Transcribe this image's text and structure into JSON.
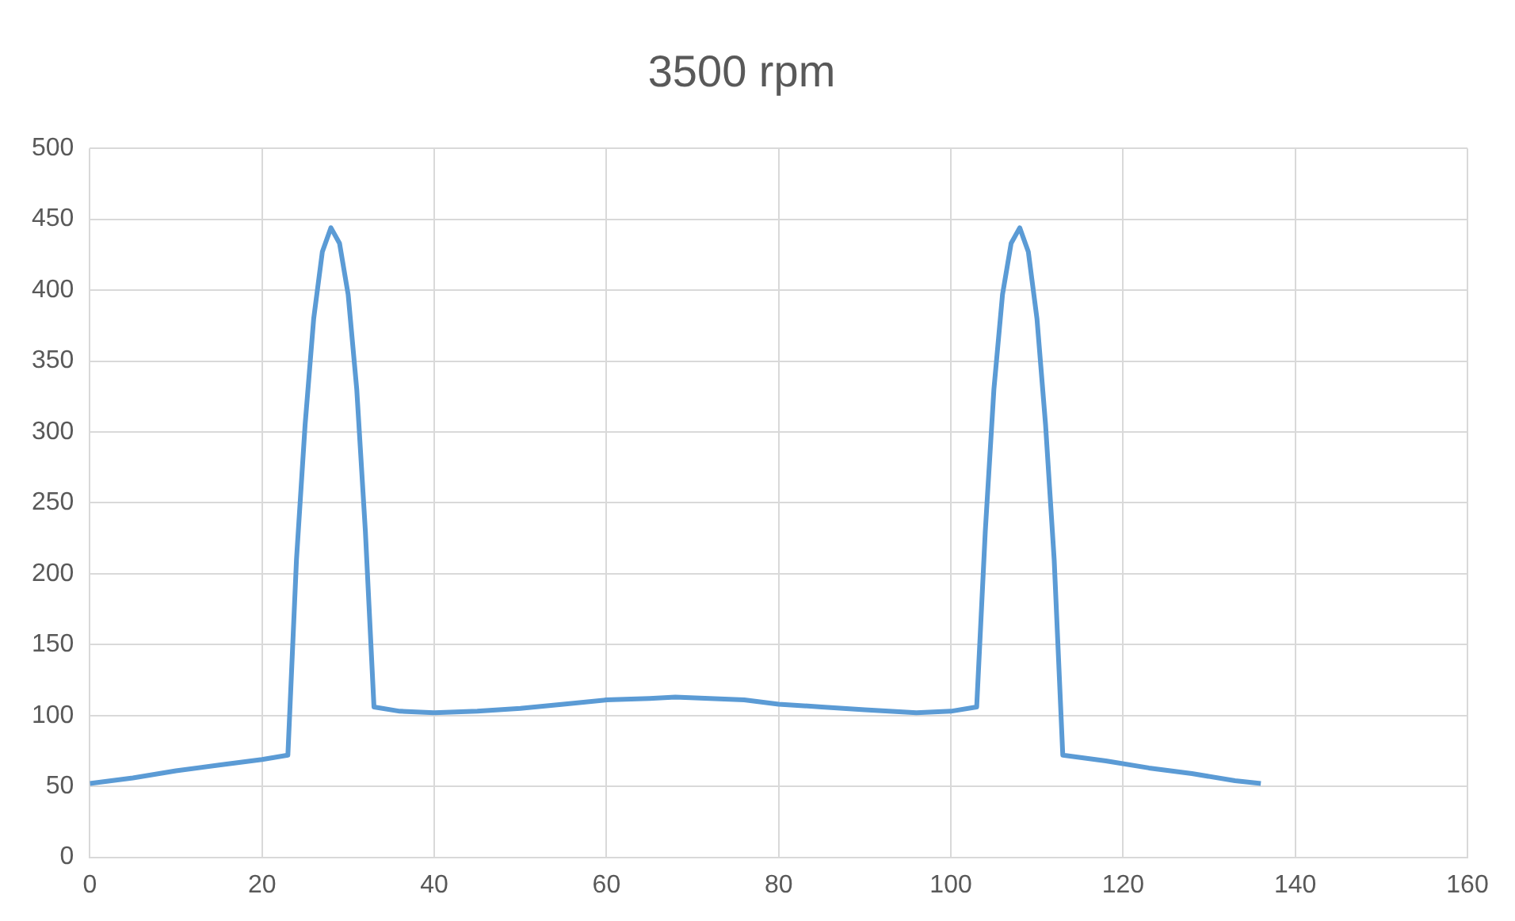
{
  "chart_data": {
    "type": "line",
    "title": "3500 rpm",
    "x": [
      0,
      5,
      10,
      15,
      20,
      23,
      24,
      25,
      26,
      27,
      28,
      29,
      30,
      31,
      32,
      33,
      36,
      40,
      45,
      50,
      55,
      60,
      65,
      68,
      72,
      76,
      80,
      85,
      90,
      96,
      100,
      103,
      104,
      105,
      106,
      107,
      108,
      109,
      110,
      111,
      112,
      113,
      118,
      123,
      128,
      133,
      136
    ],
    "series": [
      {
        "color": "#5b9bd5",
        "values": [
          52,
          56,
          61,
          65,
          69,
          72,
          210,
          305,
          380,
          427,
          444,
          433,
          397,
          330,
          230,
          106,
          103,
          102,
          103,
          105,
          108,
          111,
          112,
          113,
          112,
          111,
          108,
          106,
          104,
          102,
          103,
          106,
          230,
          330,
          397,
          433,
          444,
          427,
          380,
          305,
          210,
          72,
          68,
          63,
          59,
          54,
          52
        ]
      }
    ],
    "xlim": [
      0,
      160
    ],
    "xticks": [
      0,
      20,
      40,
      60,
      80,
      100,
      120,
      140,
      160
    ],
    "ylim": [
      0,
      500
    ],
    "yticks": [
      0,
      50,
      100,
      150,
      200,
      250,
      300,
      350,
      400,
      450,
      500
    ],
    "grid": true,
    "legend": false,
    "marker": "none",
    "line_style": "solid"
  }
}
